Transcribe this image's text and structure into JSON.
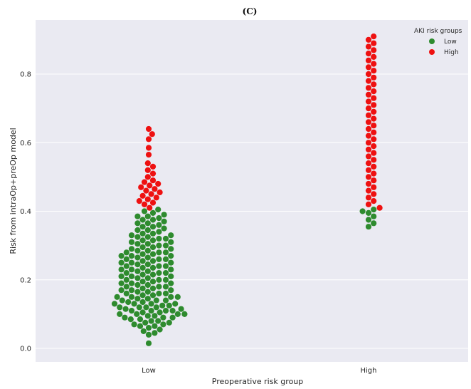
{
  "chart_data": {
    "type": "scatter",
    "subtype": "swarm",
    "title": "(C)",
    "xlabel": "Preoperative risk group",
    "ylabel": "Risk from intraOp+preOp model",
    "categories": [
      "Low",
      "High"
    ],
    "ylim": [
      -0.04,
      0.95
    ],
    "yticks": [
      "0.0",
      "0.2",
      "0.4",
      "0.6",
      "0.8"
    ],
    "ytick_values": [
      0.0,
      0.2,
      0.4,
      0.6,
      0.8
    ],
    "grid": true,
    "legend": {
      "title": "AKI risk groups",
      "placement": "top-right",
      "entries": [
        {
          "label": "Low",
          "color": "#2e8b2e"
        },
        {
          "label": "High",
          "color": "#ee1111"
        }
      ]
    },
    "threshold": 0.41,
    "colors": {
      "low": "#2e8b2e",
      "high": "#ee1111",
      "panel": "#eaeaf2",
      "grid": "#ffffff"
    },
    "groups": [
      {
        "category": "Low",
        "values": [
          0.015,
          0.04,
          0.045,
          0.05,
          0.055,
          0.06,
          0.065,
          0.065,
          0.07,
          0.07,
          0.075,
          0.075,
          0.08,
          0.08,
          0.085,
          0.085,
          0.09,
          0.09,
          0.09,
          0.095,
          0.095,
          0.1,
          0.1,
          0.1,
          0.1,
          0.105,
          0.105,
          0.11,
          0.11,
          0.11,
          0.11,
          0.115,
          0.115,
          0.12,
          0.12,
          0.12,
          0.12,
          0.125,
          0.125,
          0.13,
          0.13,
          0.13,
          0.13,
          0.135,
          0.135,
          0.14,
          0.14,
          0.14,
          0.145,
          0.145,
          0.15,
          0.15,
          0.15,
          0.15,
          0.155,
          0.155,
          0.16,
          0.16,
          0.16,
          0.165,
          0.165,
          0.17,
          0.17,
          0.17,
          0.175,
          0.175,
          0.18,
          0.18,
          0.18,
          0.185,
          0.185,
          0.19,
          0.19,
          0.19,
          0.195,
          0.195,
          0.2,
          0.2,
          0.2,
          0.205,
          0.205,
          0.21,
          0.21,
          0.21,
          0.215,
          0.215,
          0.22,
          0.22,
          0.22,
          0.225,
          0.225,
          0.23,
          0.23,
          0.23,
          0.235,
          0.235,
          0.24,
          0.24,
          0.24,
          0.245,
          0.245,
          0.25,
          0.25,
          0.25,
          0.255,
          0.255,
          0.26,
          0.26,
          0.26,
          0.265,
          0.265,
          0.27,
          0.27,
          0.27,
          0.275,
          0.275,
          0.28,
          0.28,
          0.28,
          0.285,
          0.285,
          0.29,
          0.29,
          0.295,
          0.295,
          0.3,
          0.3,
          0.305,
          0.305,
          0.31,
          0.31,
          0.315,
          0.315,
          0.32,
          0.32,
          0.325,
          0.325,
          0.33,
          0.33,
          0.335,
          0.335,
          0.34,
          0.345,
          0.345,
          0.35,
          0.355,
          0.355,
          0.36,
          0.365,
          0.365,
          0.37,
          0.375,
          0.375,
          0.38,
          0.385,
          0.385,
          0.39,
          0.395,
          0.4,
          0.405,
          0.41,
          0.42,
          0.425,
          0.43,
          0.435,
          0.44,
          0.445,
          0.45,
          0.455,
          0.46,
          0.465,
          0.47,
          0.475,
          0.48,
          0.485,
          0.49,
          0.5,
          0.51,
          0.52,
          0.53,
          0.54,
          0.565,
          0.585,
          0.61,
          0.625,
          0.64
        ]
      },
      {
        "category": "High",
        "values": [
          0.355,
          0.365,
          0.375,
          0.385,
          0.395,
          0.4,
          0.405,
          0.41,
          0.42,
          0.43,
          0.44,
          0.45,
          0.46,
          0.47,
          0.48,
          0.49,
          0.5,
          0.51,
          0.52,
          0.53,
          0.54,
          0.55,
          0.56,
          0.57,
          0.58,
          0.59,
          0.6,
          0.61,
          0.62,
          0.63,
          0.64,
          0.65,
          0.66,
          0.67,
          0.68,
          0.69,
          0.7,
          0.71,
          0.72,
          0.73,
          0.74,
          0.75,
          0.76,
          0.77,
          0.78,
          0.79,
          0.8,
          0.81,
          0.82,
          0.83,
          0.84,
          0.85,
          0.86,
          0.87,
          0.88,
          0.89,
          0.9,
          0.91
        ]
      }
    ]
  }
}
